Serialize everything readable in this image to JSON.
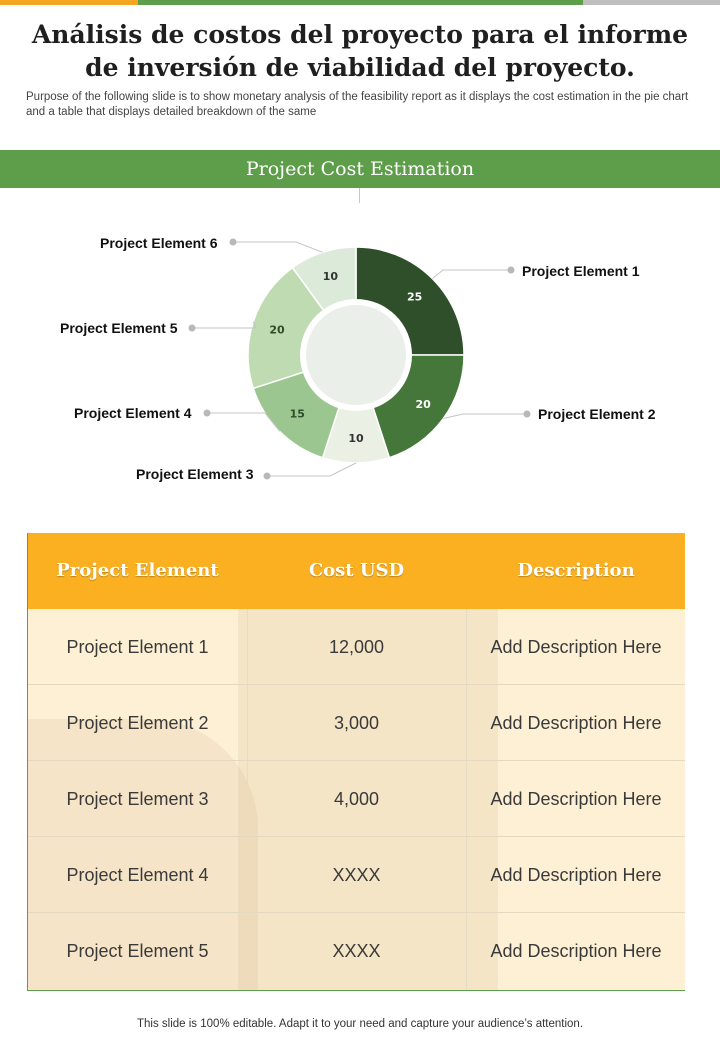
{
  "title": "Análisis de costos del proyecto para el informe de inversión de viabilidad del proyecto.",
  "subtitle": "Purpose of the following slide is to show monetary analysis of the feasibility report as it displays the cost estimation in the pie chart and a table that displays detailed breakdown of the same",
  "section_title": "Project Cost Estimation",
  "colors": {
    "accent_green": "#5e9e4a",
    "accent_orange": "#fbb022",
    "slices": [
      "#2e4f29",
      "#45773a",
      "#eaf1e4",
      "#9cc68f",
      "#bedbb1",
      "#dceada"
    ]
  },
  "chart_data": {
    "type": "pie",
    "title": "Project Cost Estimation",
    "donut": true,
    "categories": [
      "Project Element 1",
      "Project Element 2",
      "Project Element 3",
      "Project Element 4",
      "Project Element 5",
      "Project Element 6"
    ],
    "values": [
      25,
      20,
      10,
      15,
      20,
      10
    ],
    "data_labels": [
      "25",
      "20",
      "10",
      "15",
      "20",
      "10"
    ]
  },
  "table": {
    "headers": [
      "Project Element",
      "Cost USD",
      "Description"
    ],
    "rows": [
      [
        "Project Element 1",
        "12,000",
        "Add Description Here"
      ],
      [
        "Project Element 2",
        "3,000",
        "Add Description Here"
      ],
      [
        "Project Element 3",
        "4,000",
        "Add Description Here"
      ],
      [
        "Project Element 4",
        "XXXX",
        "Add Description Here"
      ],
      [
        "Project Element 5",
        "XXXX",
        "Add Description Here"
      ]
    ]
  },
  "footer": "This slide is 100% editable. Adapt it to your need and capture your audience’s attention."
}
